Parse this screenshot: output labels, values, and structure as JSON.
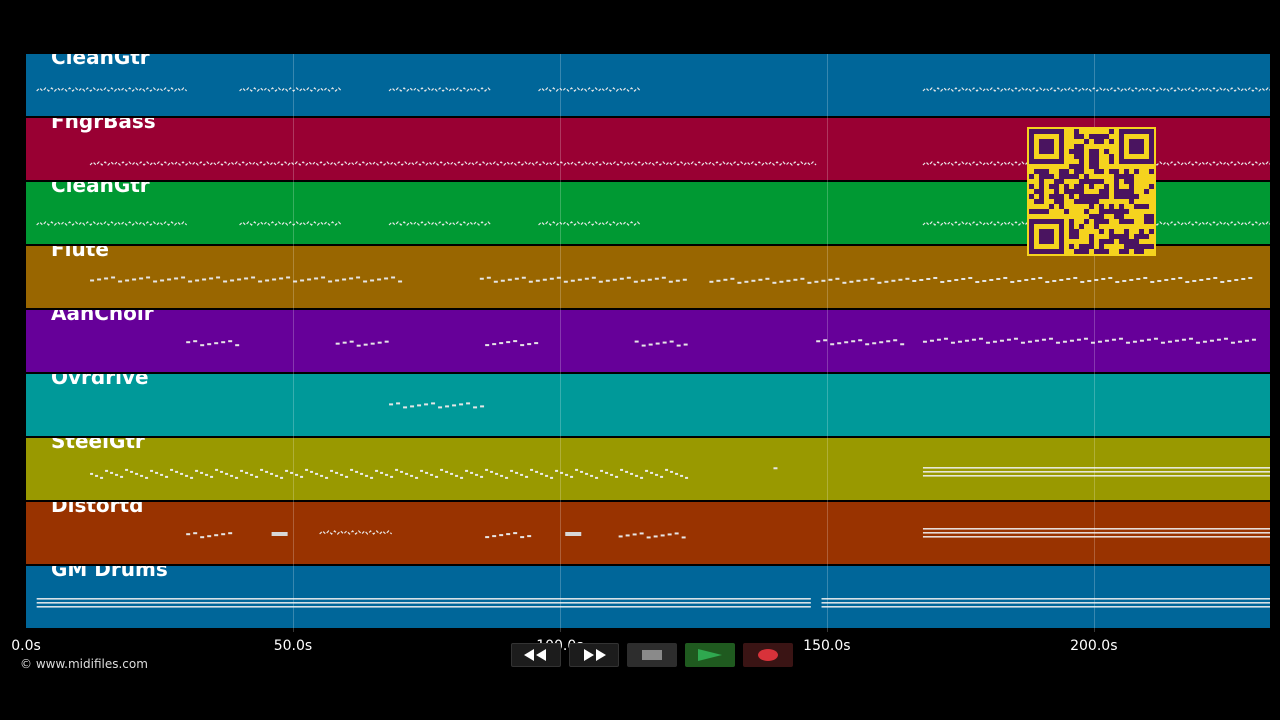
{
  "tracks": [
    {
      "name": "CleanGtr",
      "color": "#006699"
    },
    {
      "name": "FngrBass",
      "color": "#990033"
    },
    {
      "name": "CleanGtr",
      "color": "#009933"
    },
    {
      "name": "Flute",
      "color": "#996600"
    },
    {
      "name": "AahChoir",
      "color": "#660099"
    },
    {
      "name": "Ovrdrive",
      "color": "#009999"
    },
    {
      "name": "SteelGtr",
      "color": "#999900"
    },
    {
      "name": "Distortd",
      "color": "#993300"
    },
    {
      "name": "GM Drums",
      "color": "#006699"
    }
  ],
  "time_axis": {
    "ticks": [
      {
        "value": 0,
        "label": "0.0s"
      },
      {
        "value": 50,
        "label": "50.0s"
      },
      {
        "value": 100,
        "label": "100.0s"
      },
      {
        "value": 150,
        "label": "150.0s"
      },
      {
        "value": 200,
        "label": "200.0s"
      }
    ],
    "range": [
      0,
      233
    ]
  },
  "copyright": "© www.midifiles.com",
  "transport": {
    "rewind_icon": "rewind-icon",
    "fast_forward_icon": "fast-forward-icon",
    "stop_icon": "stop-icon",
    "play_icon": "play-icon",
    "record_icon": "record-icon",
    "colors": {
      "play": "#2fa84f",
      "record": "#d8323a",
      "stop": "#8a8a8a"
    }
  },
  "qr_code": {
    "icon": "qr-code-icon",
    "colors": {
      "background": "#f5d31e",
      "modules": "#4a1460"
    }
  }
}
